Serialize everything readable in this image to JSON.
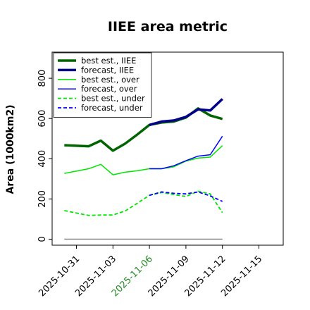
{
  "chart_data": {
    "type": "line",
    "title": "IIEE area metric",
    "xlabel": "",
    "ylabel": "Area (1000km2)",
    "x_ticks": [
      "2025-10-31",
      "2025-11-03",
      "2025-11-06",
      "2025-11-09",
      "2025-11-12",
      "2025-11-15"
    ],
    "highlighted_tick": "2025-11-06",
    "highlight_color": "#228B22",
    "y_ticks": [
      "0",
      "200",
      "400",
      "600",
      "800"
    ],
    "ylim": [
      -30,
      930
    ],
    "xlim": [
      "2025-10-29",
      "2025-11-17"
    ],
    "grid": false,
    "legend_position": "upper-left",
    "baseline": {
      "y": 0,
      "from": "2025-10-30",
      "to": "2025-11-12",
      "color": "#808080"
    },
    "series": [
      {
        "name": "best est., IIEE",
        "color": "#006400",
        "width": 3.5,
        "dash": "solid",
        "x": [
          "2025-10-30",
          "2025-11-01",
          "2025-11-02",
          "2025-11-03",
          "2025-11-04",
          "2025-11-05",
          "2025-11-06",
          "2025-11-07",
          "2025-11-08",
          "2025-11-09",
          "2025-11-10",
          "2025-11-11",
          "2025-11-12"
        ],
        "y": [
          467,
          462,
          490,
          440,
          475,
          520,
          568,
          580,
          585,
          605,
          650,
          615,
          598
        ]
      },
      {
        "name": "forecast, IIEE",
        "color": "#00008B",
        "width": 3.5,
        "dash": "solid",
        "x": [
          "2025-11-06",
          "2025-11-07",
          "2025-11-08",
          "2025-11-09",
          "2025-11-10",
          "2025-11-11",
          "2025-11-12"
        ],
        "y": [
          568,
          585,
          590,
          608,
          645,
          640,
          697
        ]
      },
      {
        "name": "best est., over",
        "color": "#00E600",
        "width": 1.5,
        "dash": "solid",
        "x": [
          "2025-10-30",
          "2025-11-01",
          "2025-11-02",
          "2025-11-03",
          "2025-11-04",
          "2025-11-05",
          "2025-11-06",
          "2025-11-07",
          "2025-11-08",
          "2025-11-09",
          "2025-11-10",
          "2025-11-11",
          "2025-11-12"
        ],
        "y": [
          327,
          350,
          372,
          320,
          333,
          340,
          350,
          350,
          360,
          388,
          403,
          408,
          465
        ]
      },
      {
        "name": "forecast, over",
        "color": "#0000FF",
        "width": 1.5,
        "dash": "solid",
        "x": [
          "2025-11-06",
          "2025-11-07",
          "2025-11-08",
          "2025-11-09",
          "2025-11-10",
          "2025-11-11",
          "2025-11-12"
        ],
        "y": [
          350,
          350,
          365,
          390,
          413,
          420,
          512
        ]
      },
      {
        "name": "best est., under",
        "color": "#00E600",
        "width": 1.8,
        "dash": "dashed",
        "x": [
          "2025-10-30",
          "2025-11-01",
          "2025-11-02",
          "2025-11-03",
          "2025-11-04",
          "2025-11-05",
          "2025-11-06",
          "2025-11-07",
          "2025-11-08",
          "2025-11-09",
          "2025-11-10",
          "2025-11-11",
          "2025-11-12"
        ],
        "y": [
          142,
          118,
          120,
          120,
          140,
          178,
          218,
          232,
          222,
          212,
          238,
          225,
          132
        ]
      },
      {
        "name": "forecast, under",
        "color": "#0000FF",
        "width": 1.8,
        "dash": "dashed",
        "x": [
          "2025-11-06",
          "2025-11-07",
          "2025-11-08",
          "2025-11-09",
          "2025-11-10",
          "2025-11-11",
          "2025-11-12"
        ],
        "y": [
          218,
          235,
          228,
          225,
          235,
          215,
          188
        ]
      }
    ]
  }
}
